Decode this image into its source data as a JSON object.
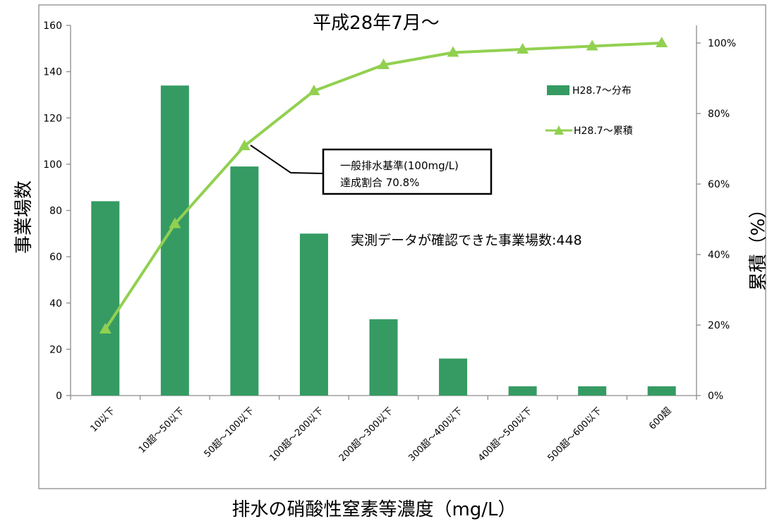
{
  "chart_data": {
    "type": "bar",
    "title": "平成28年7月～",
    "xlabel": "排水の硝酸性窒素等濃度（mg/L）",
    "ylabel": "事業場数",
    "y2label": "累積（%）",
    "categories": [
      "10以下",
      "10超～50以下",
      "50超～100以下",
      "100超～200以下",
      "200超～300以下",
      "300超～400以下",
      "400超～500以下",
      "500超～600以下",
      "600超"
    ],
    "ylim": [
      0,
      160
    ],
    "yticks": [
      0,
      20,
      40,
      60,
      80,
      100,
      120,
      140,
      160
    ],
    "y2lim": [
      0,
      105
    ],
    "y2ticks": [
      "0%",
      "20%",
      "40%",
      "60%",
      "80%",
      "100%"
    ],
    "series": [
      {
        "name": "H28.7～分布",
        "type": "bar",
        "axis": "left",
        "color": "#359b63",
        "values": [
          84,
          134,
          99,
          70,
          33,
          16,
          4,
          4,
          4
        ]
      },
      {
        "name": "H28.7～累積",
        "type": "line",
        "axis": "right",
        "color": "#92d050",
        "marker": "triangle",
        "values": [
          18.8,
          48.7,
          70.8,
          86.4,
          93.8,
          97.3,
          98.2,
          99.1,
          100.0
        ]
      }
    ],
    "legend_position": "right",
    "grid": false,
    "annotations": {
      "callout_line1": "一般排水基準(100mg/L)",
      "callout_line2": "達成割合 70.8%",
      "note": "実測データが確認できた事業場数:448"
    }
  }
}
